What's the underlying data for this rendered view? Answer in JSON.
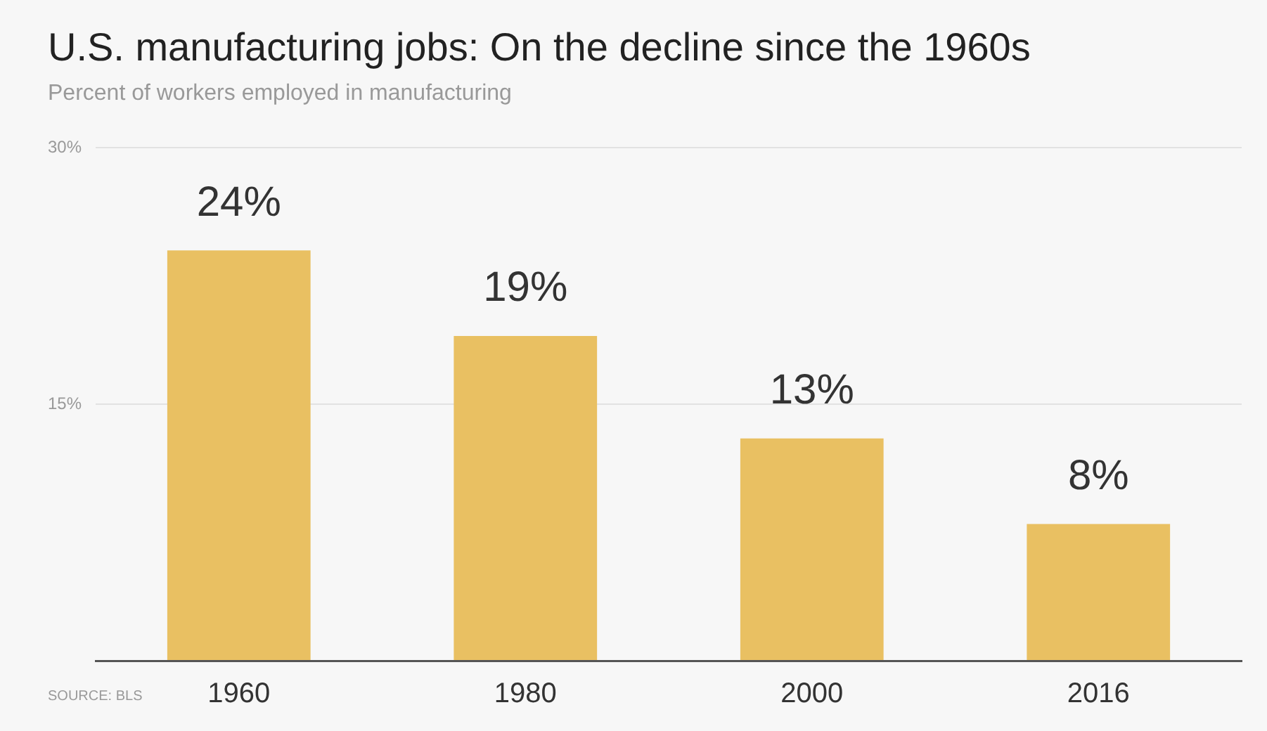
{
  "chart_data": {
    "type": "bar",
    "title": "U.S. manufacturing jobs: On the decline since the 1960s",
    "subtitle": "Percent of workers employed in manufacturing",
    "categories": [
      "1960",
      "1980",
      "2000",
      "2016"
    ],
    "values": [
      24,
      19,
      13,
      8
    ],
    "value_labels": [
      "24%",
      "19%",
      "13%",
      "8%"
    ],
    "color": "#e9c062",
    "ylim": [
      0,
      30
    ],
    "yticks": [
      {
        "value": 0,
        "label": null
      },
      {
        "value": 15,
        "label": "15%"
      },
      {
        "value": 30,
        "label": "30%"
      }
    ],
    "grid": "y",
    "annotations": [
      "SOURCE: BLS"
    ]
  }
}
